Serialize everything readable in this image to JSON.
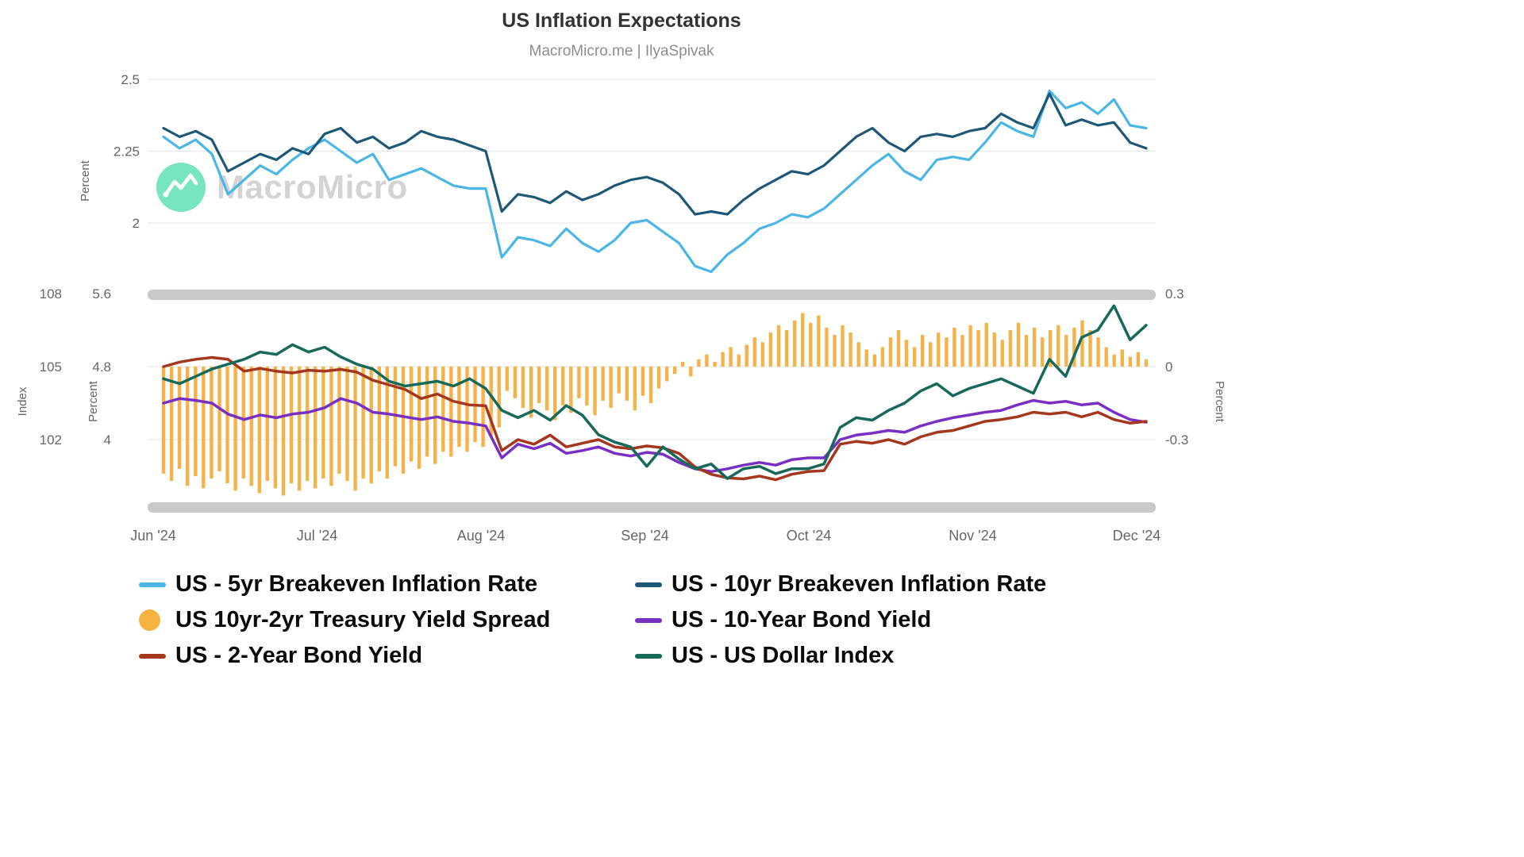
{
  "watermark": {
    "text": "MacroMicro"
  },
  "chart_data": {
    "type": "line",
    "title": "US Inflation Expectations",
    "subtitle": "MacroMicro.me | IlyaSpivak",
    "x_ticks": [
      "Jun '24",
      "Jul '24",
      "Aug '24",
      "Sep '24",
      "Oct '24",
      "Nov '24",
      "Dec '24"
    ],
    "x_range_note": "series values are evenly sampled from Jun '24 to Dec '24",
    "panels": [
      {
        "id": "top",
        "ylabel": "Percent",
        "ylim": [
          1.78,
          2.51
        ],
        "yticks": [
          {
            "label": "2.5",
            "value": 2.5
          },
          {
            "label": "2.25",
            "value": 2.25
          },
          {
            "label": "2",
            "value": 2.0
          }
        ],
        "series": [
          {
            "name": "US - 5yr Breakeven Inflation Rate",
            "type": "line",
            "axis": "p_top",
            "color": "#4ab6e6",
            "values": [
              2.3,
              2.26,
              2.29,
              2.24,
              2.1,
              2.15,
              2.2,
              2.17,
              2.22,
              2.26,
              2.29,
              2.25,
              2.21,
              2.24,
              2.15,
              2.17,
              2.19,
              2.16,
              2.13,
              2.12,
              2.12,
              1.88,
              1.95,
              1.94,
              1.92,
              1.98,
              1.93,
              1.9,
              1.94,
              2.0,
              2.01,
              1.97,
              1.93,
              1.85,
              1.83,
              1.89,
              1.93,
              1.98,
              2.0,
              2.03,
              2.02,
              2.05,
              2.1,
              2.15,
              2.2,
              2.24,
              2.18,
              2.15,
              2.22,
              2.23,
              2.22,
              2.28,
              2.35,
              2.32,
              2.3,
              2.46,
              2.4,
              2.42,
              2.38,
              2.43,
              2.34,
              2.33
            ]
          },
          {
            "name": "US - 10yr Breakeven Inflation Rate",
            "type": "line",
            "axis": "p_top",
            "color": "#1d5877",
            "values": [
              2.33,
              2.3,
              2.32,
              2.29,
              2.18,
              2.21,
              2.24,
              2.22,
              2.26,
              2.24,
              2.31,
              2.33,
              2.28,
              2.3,
              2.26,
              2.28,
              2.32,
              2.3,
              2.29,
              2.27,
              2.25,
              2.04,
              2.1,
              2.09,
              2.07,
              2.11,
              2.08,
              2.1,
              2.13,
              2.15,
              2.16,
              2.14,
              2.1,
              2.03,
              2.04,
              2.03,
              2.08,
              2.12,
              2.15,
              2.18,
              2.17,
              2.2,
              2.25,
              2.3,
              2.33,
              2.28,
              2.25,
              2.3,
              2.31,
              2.3,
              2.32,
              2.33,
              2.38,
              2.35,
              2.33,
              2.45,
              2.34,
              2.36,
              2.34,
              2.35,
              2.28,
              2.26
            ]
          }
        ]
      },
      {
        "id": "bottom",
        "axes": {
          "index": {
            "title": "Index",
            "lim": [
              99.4,
              107.7
            ],
            "ticks": [
              {
                "label": "108",
                "value": 108
              },
              {
                "label": "105",
                "value": 105
              },
              {
                "label": "102",
                "value": 102
              }
            ]
          },
          "percent_left": {
            "title": "Percent",
            "lim": [
              3.31,
              5.52
            ],
            "ticks": [
              {
                "label": "5.6",
                "value": 5.6
              },
              {
                "label": "4.8",
                "value": 4.8
              },
              {
                "label": "4",
                "value": 4.0
              }
            ]
          },
          "percent_right": {
            "title": "Percent",
            "lim": [
              -0.56,
              0.27
            ],
            "ticks": [
              {
                "label": "0.3",
                "value": 0.3
              },
              {
                "label": "0",
                "value": 0
              },
              {
                "label": "-0.3",
                "value": -0.3
              }
            ]
          }
        },
        "series": [
          {
            "name": "US 10yr-2yr Treasury Yield Spread",
            "type": "bar",
            "axis": "percent_right",
            "color": "#f3b34a",
            "values": [
              -0.44,
              -0.47,
              -0.42,
              -0.49,
              -0.45,
              -0.5,
              -0.46,
              -0.43,
              -0.48,
              -0.51,
              -0.46,
              -0.49,
              -0.52,
              -0.47,
              -0.5,
              -0.53,
              -0.48,
              -0.51,
              -0.47,
              -0.5,
              -0.46,
              -0.49,
              -0.44,
              -0.47,
              -0.51,
              -0.46,
              -0.48,
              -0.43,
              -0.46,
              -0.41,
              -0.44,
              -0.39,
              -0.42,
              -0.37,
              -0.4,
              -0.35,
              -0.37,
              -0.33,
              -0.35,
              -0.31,
              -0.33,
              -0.29,
              -0.25,
              -0.1,
              -0.13,
              -0.17,
              -0.21,
              -0.15,
              -0.18,
              -0.22,
              -0.16,
              -0.19,
              -0.13,
              -0.16,
              -0.2,
              -0.14,
              -0.17,
              -0.11,
              -0.14,
              -0.18,
              -0.12,
              -0.15,
              -0.09,
              -0.06,
              -0.03,
              0.02,
              -0.04,
              0.03,
              0.05,
              0.02,
              0.06,
              0.08,
              0.05,
              0.09,
              0.12,
              0.1,
              0.14,
              0.17,
              0.15,
              0.19,
              0.22,
              0.18,
              0.21,
              0.16,
              0.13,
              0.17,
              0.14,
              0.1,
              0.07,
              0.05,
              0.08,
              0.12,
              0.15,
              0.11,
              0.08,
              0.13,
              0.1,
              0.14,
              0.12,
              0.16,
              0.13,
              0.17,
              0.15,
              0.18,
              0.14,
              0.11,
              0.15,
              0.18,
              0.13,
              0.16,
              0.12,
              0.15,
              0.17,
              0.13,
              0.16,
              0.19,
              0.15,
              0.12,
              0.08,
              0.05,
              0.07,
              0.04,
              0.06,
              0.03
            ]
          },
          {
            "name": "US - 10-Year Bond Yield",
            "type": "line",
            "axis": "percent_left",
            "color": "#7a2fc4",
            "values": [
              4.4,
              4.45,
              4.43,
              4.4,
              4.28,
              4.22,
              4.27,
              4.24,
              4.28,
              4.3,
              4.35,
              4.45,
              4.4,
              4.3,
              4.28,
              4.25,
              4.22,
              4.25,
              4.2,
              4.18,
              4.15,
              3.8,
              3.95,
              3.9,
              3.96,
              3.85,
              3.88,
              3.92,
              3.85,
              3.82,
              3.86,
              3.84,
              3.75,
              3.68,
              3.65,
              3.68,
              3.72,
              3.75,
              3.72,
              3.78,
              3.8,
              3.8,
              4.0,
              4.05,
              4.07,
              4.1,
              4.08,
              4.15,
              4.2,
              4.24,
              4.27,
              4.3,
              4.32,
              4.38,
              4.43,
              4.4,
              4.42,
              4.38,
              4.4,
              4.3,
              4.22,
              4.19
            ]
          },
          {
            "name": "US - 2-Year Bond Yield",
            "type": "line",
            "axis": "percent_left",
            "color": "#a5371e",
            "values": [
              4.8,
              4.85,
              4.88,
              4.9,
              4.88,
              4.75,
              4.78,
              4.75,
              4.73,
              4.76,
              4.75,
              4.77,
              4.74,
              4.65,
              4.6,
              4.55,
              4.45,
              4.5,
              4.42,
              4.38,
              4.37,
              3.88,
              4.0,
              3.95,
              4.05,
              3.92,
              3.96,
              4.0,
              3.92,
              3.9,
              3.93,
              3.91,
              3.85,
              3.7,
              3.62,
              3.58,
              3.57,
              3.6,
              3.56,
              3.62,
              3.65,
              3.66,
              3.95,
              3.98,
              3.96,
              4.0,
              3.95,
              4.03,
              4.08,
              4.1,
              4.15,
              4.2,
              4.22,
              4.25,
              4.3,
              4.28,
              4.3,
              4.25,
              4.3,
              4.22,
              4.18,
              4.2
            ]
          },
          {
            "name": "US - US Dollar Index",
            "type": "line",
            "axis": "index",
            "color": "#17695a",
            "values": [
              104.5,
              104.3,
              104.6,
              104.9,
              105.1,
              105.3,
              105.6,
              105.5,
              105.9,
              105.6,
              105.8,
              105.4,
              105.1,
              104.9,
              104.4,
              104.2,
              104.3,
              104.4,
              104.2,
              104.5,
              104.1,
              103.2,
              102.9,
              103.2,
              102.8,
              103.4,
              103.0,
              102.2,
              101.9,
              101.7,
              100.9,
              101.7,
              101.2,
              100.8,
              101.0,
              100.4,
              100.8,
              100.9,
              100.6,
              100.8,
              100.8,
              101.0,
              102.5,
              102.9,
              102.8,
              103.2,
              103.5,
              104.0,
              104.3,
              103.8,
              104.1,
              104.3,
              104.5,
              104.2,
              103.9,
              105.3,
              104.6,
              106.2,
              106.5,
              107.5,
              106.1,
              106.7
            ]
          }
        ]
      }
    ],
    "legend": [
      {
        "label": "US - 5yr Breakeven Inflation Rate",
        "color": "#4ab6e6",
        "swatch": "line"
      },
      {
        "label": "US 10yr-2yr Treasury Yield Spread",
        "color": "#f3b33e",
        "swatch": "circle"
      },
      {
        "label": "US - 2-Year Bond Yield",
        "color": "#a5371e",
        "swatch": "line"
      },
      {
        "label": "US - 10yr Breakeven Inflation Rate",
        "color": "#1d5877",
        "swatch": "line"
      },
      {
        "label": "US - 10-Year Bond Yield",
        "color": "#7a2fc4",
        "swatch": "line"
      },
      {
        "label": "US - US Dollar Index",
        "color": "#17695a",
        "swatch": "line"
      }
    ],
    "layout_hints": {
      "legend_position": "bottom",
      "grid": true,
      "panel_separator_color": "#c9c9c9"
    }
  }
}
